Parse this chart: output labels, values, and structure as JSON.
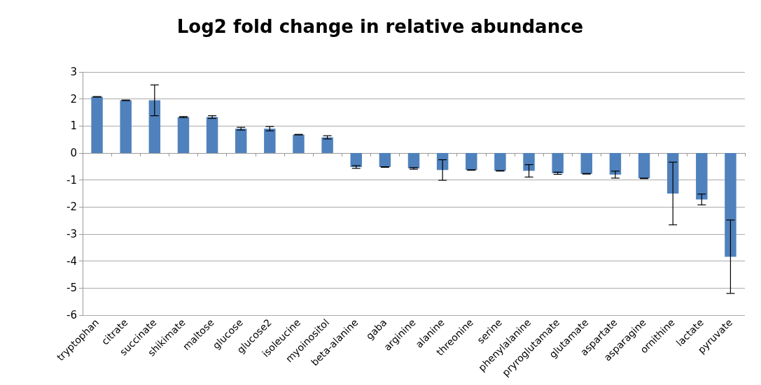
{
  "chart_data": {
    "type": "bar",
    "title": "Log2 fold change in relative abundance",
    "categories": [
      "tryptophan",
      "citrate",
      "succinate",
      "shikimate",
      "maltose",
      "glucose",
      "glucose2",
      "isoleucine",
      "myoinositol",
      "beta-alanine",
      "gaba",
      "arginine",
      "alanine",
      "threonine",
      "serine",
      "phenylalanine",
      "pryroglutamate",
      "glutamate",
      "aspartate",
      "asparagine",
      "ornithine",
      "lactate",
      "pyruvate"
    ],
    "values": [
      2.08,
      1.95,
      1.95,
      1.33,
      1.33,
      0.9,
      0.9,
      0.68,
      0.58,
      -0.52,
      -0.52,
      -0.57,
      -0.63,
      -0.63,
      -0.66,
      -0.66,
      -0.75,
      -0.77,
      -0.8,
      -0.94,
      -1.5,
      -1.72,
      -3.84
    ],
    "errors": [
      0.01,
      0.01,
      0.57,
      0.02,
      0.05,
      0.05,
      0.08,
      0.01,
      0.06,
      0.05,
      0.01,
      0.03,
      0.38,
      0.01,
      0.01,
      0.23,
      0.04,
      0.01,
      0.13,
      0.01,
      1.16,
      0.2,
      1.36
    ],
    "color": "#4f81bd",
    "ylim": [
      -6,
      3
    ],
    "yticks": [
      -6,
      -5,
      -4,
      -3,
      -2,
      -1,
      0,
      1,
      2,
      3
    ],
    "grid": "y"
  }
}
